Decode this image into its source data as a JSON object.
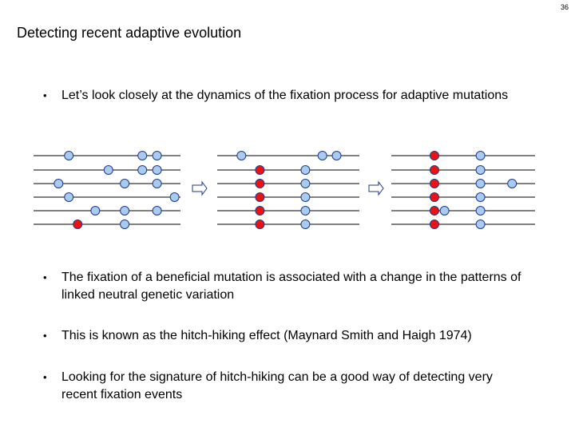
{
  "slide": {
    "page_number": "36",
    "title": "Detecting recent adaptive evolution",
    "bullet_char": "•",
    "bullets": [
      "Let’s look closely at the dynamics of the fixation process for adaptive mutations",
      "The fixation of a beneficial mutation is associated with a change in the patterns of linked neutral genetic variation",
      "This is known as the hitch-hiking effect (Maynard Smith and Haigh 1974)",
      "Looking for the signature of hitch-hiking can be a good way of detecting very recent fixation events"
    ]
  },
  "diagram": {
    "colors": {
      "neutral": "#a9cbf0",
      "beneficial": "#ee1111",
      "stroke": "#1f3a8a",
      "line": "#000000",
      "arrow": "#1f3a8a"
    },
    "panels": [
      {
        "name": "before",
        "mutations": [
          {
            "row": 0,
            "pos": 0.24,
            "type": "neutral"
          },
          {
            "row": 0,
            "pos": 0.74,
            "type": "neutral"
          },
          {
            "row": 0,
            "pos": 0.84,
            "type": "neutral"
          },
          {
            "row": 1,
            "pos": 0.51,
            "type": "neutral"
          },
          {
            "row": 1,
            "pos": 0.74,
            "type": "neutral"
          },
          {
            "row": 1,
            "pos": 0.84,
            "type": "neutral"
          },
          {
            "row": 2,
            "pos": 0.17,
            "type": "neutral"
          },
          {
            "row": 2,
            "pos": 0.62,
            "type": "neutral"
          },
          {
            "row": 2,
            "pos": 0.84,
            "type": "neutral"
          },
          {
            "row": 3,
            "pos": 0.24,
            "type": "neutral"
          },
          {
            "row": 3,
            "pos": 0.96,
            "type": "neutral"
          },
          {
            "row": 4,
            "pos": 0.42,
            "type": "neutral"
          },
          {
            "row": 4,
            "pos": 0.62,
            "type": "neutral"
          },
          {
            "row": 4,
            "pos": 0.84,
            "type": "neutral"
          },
          {
            "row": 5,
            "pos": 0.3,
            "type": "beneficial"
          },
          {
            "row": 5,
            "pos": 0.62,
            "type": "neutral"
          }
        ]
      },
      {
        "name": "during",
        "mutations": [
          {
            "row": 0,
            "pos": 0.17,
            "type": "neutral"
          },
          {
            "row": 0,
            "pos": 0.74,
            "type": "neutral"
          },
          {
            "row": 0,
            "pos": 0.84,
            "type": "neutral"
          },
          {
            "row": 1,
            "pos": 0.3,
            "type": "beneficial"
          },
          {
            "row": 1,
            "pos": 0.62,
            "type": "neutral"
          },
          {
            "row": 2,
            "pos": 0.3,
            "type": "beneficial"
          },
          {
            "row": 2,
            "pos": 0.62,
            "type": "neutral"
          },
          {
            "row": 3,
            "pos": 0.3,
            "type": "beneficial"
          },
          {
            "row": 3,
            "pos": 0.62,
            "type": "neutral"
          },
          {
            "row": 4,
            "pos": 0.3,
            "type": "beneficial"
          },
          {
            "row": 4,
            "pos": 0.62,
            "type": "neutral"
          },
          {
            "row": 5,
            "pos": 0.3,
            "type": "beneficial"
          },
          {
            "row": 5,
            "pos": 0.62,
            "type": "neutral"
          }
        ]
      },
      {
        "name": "after",
        "mutations": [
          {
            "row": 0,
            "pos": 0.3,
            "type": "beneficial"
          },
          {
            "row": 0,
            "pos": 0.62,
            "type": "neutral"
          },
          {
            "row": 1,
            "pos": 0.3,
            "type": "beneficial"
          },
          {
            "row": 1,
            "pos": 0.62,
            "type": "neutral"
          },
          {
            "row": 2,
            "pos": 0.3,
            "type": "beneficial"
          },
          {
            "row": 2,
            "pos": 0.62,
            "type": "neutral"
          },
          {
            "row": 2,
            "pos": 0.84,
            "type": "neutral"
          },
          {
            "row": 3,
            "pos": 0.3,
            "type": "beneficial"
          },
          {
            "row": 3,
            "pos": 0.62,
            "type": "neutral"
          },
          {
            "row": 4,
            "pos": 0.3,
            "type": "beneficial"
          },
          {
            "row": 4,
            "pos": 0.37,
            "type": "neutral"
          },
          {
            "row": 4,
            "pos": 0.62,
            "type": "neutral"
          },
          {
            "row": 5,
            "pos": 0.3,
            "type": "beneficial"
          },
          {
            "row": 5,
            "pos": 0.62,
            "type": "neutral"
          }
        ]
      }
    ]
  }
}
